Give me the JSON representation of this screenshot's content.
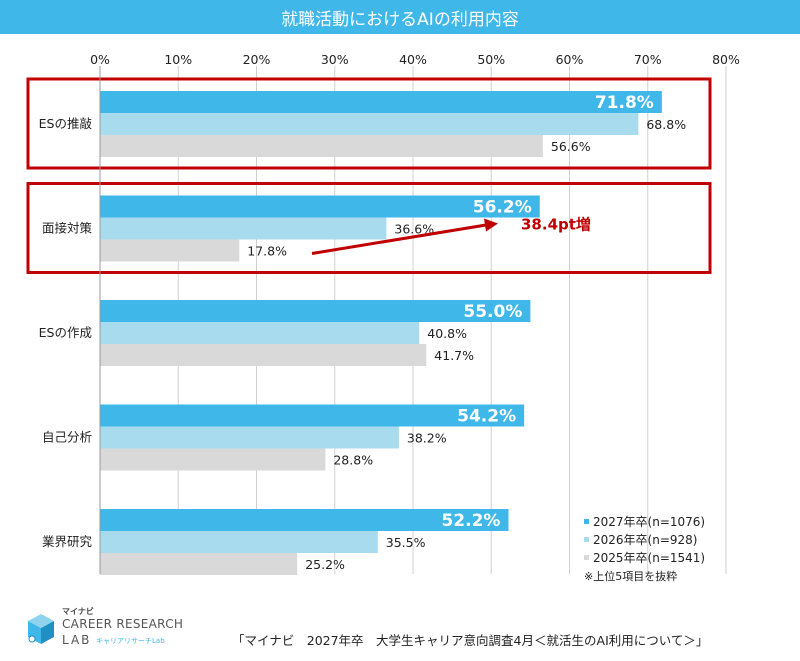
{
  "title": "就職活動におけるAIの利用内容",
  "colors": {
    "header": "#3fb7e8",
    "series": [
      "#3fb7e8",
      "#a9dbef",
      "#d9d9d9"
    ],
    "highlight": "#c00000",
    "arrow": "#c00000"
  },
  "chart_data": {
    "type": "bar",
    "orientation": "horizontal",
    "categories": [
      "ESの推敲",
      "面接対策",
      "ESの作成",
      "自己分析",
      "業界研究"
    ],
    "series": [
      {
        "name": "2027年卒(n=1076)",
        "values": [
          71.8,
          56.2,
          55.0,
          54.2,
          52.2
        ]
      },
      {
        "name": "2026年卒(n=928)",
        "values": [
          68.8,
          36.6,
          40.8,
          38.2,
          35.5
        ]
      },
      {
        "name": "2025年卒(n=1541)",
        "values": [
          56.6,
          17.8,
          41.7,
          28.8,
          25.2
        ]
      }
    ],
    "xlim": [
      0,
      80
    ],
    "xticks": [
      "0%",
      "10%",
      "20%",
      "30%",
      "40%",
      "50%",
      "60%",
      "70%",
      "80%"
    ],
    "grid": true,
    "highlighted_categories": [
      "ESの推敲",
      "面接対策"
    ],
    "annotation": {
      "category": "面接対策",
      "text": "38.4pt増"
    },
    "legend_position": "bottom-right"
  },
  "legend": {
    "items": [
      "2027年卒(n=1076)",
      "2026年卒(n=928)",
      "2025年卒(n=1541)"
    ],
    "note": "※上位5項目を抜粋"
  },
  "logo": {
    "small": "マイナビ",
    "main": "CAREER RESEARCH",
    "lab": "LAB",
    "sub": "キャリアリサーチLab"
  },
  "source": "「マイナビ　2027年卒　大学生キャリア意向調査4月＜就活生のAI利用について＞」"
}
